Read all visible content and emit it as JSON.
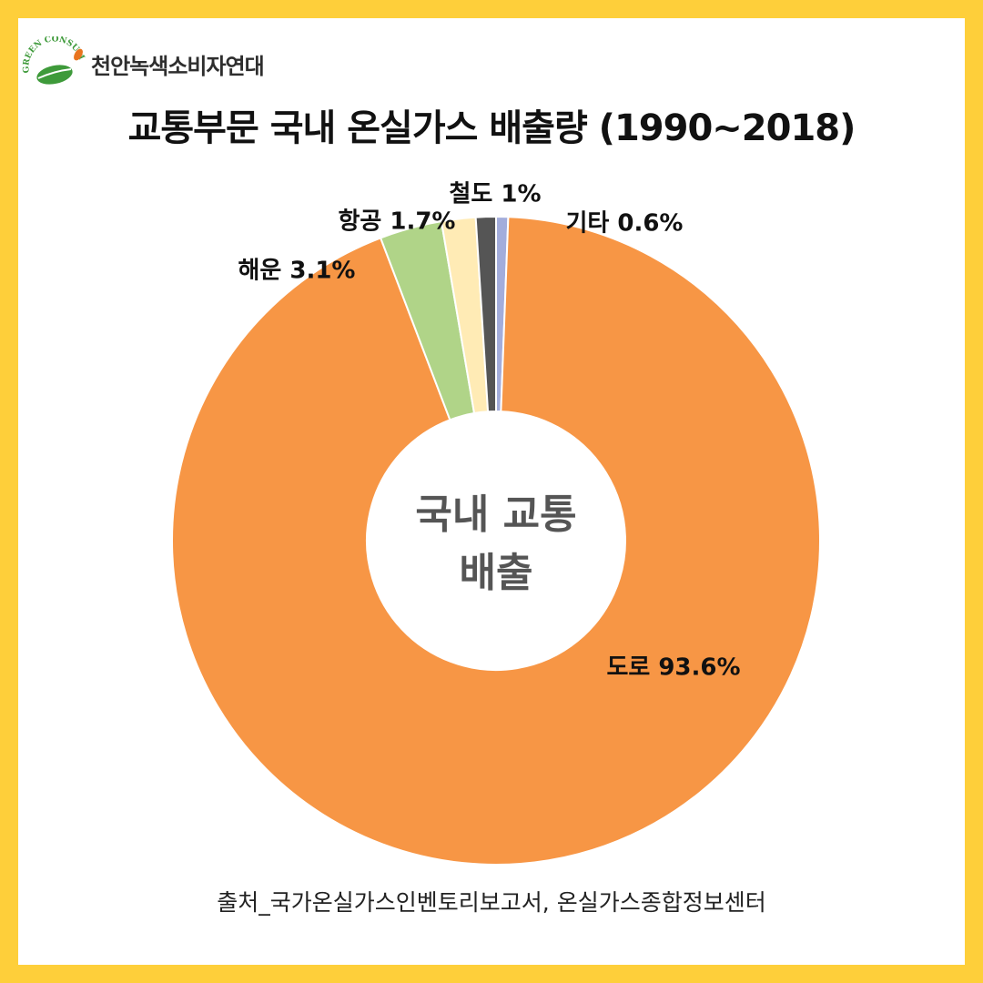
{
  "brand": {
    "logo_arc_text": "GREEN CONSUMER",
    "name": "천안녹색소비자연대",
    "logo_colors": {
      "leaf": "#3E9A3A",
      "accent": "#E8741F"
    }
  },
  "source_text": "출처_국가온실가스인벤토리보고서, 온실가스종합정보센터",
  "chart_data": {
    "type": "pie",
    "variant": "donut",
    "title": "교통부문 국내 온실가스 배출량 (1990~2018)",
    "center_label_lines": [
      "국내 교통",
      "배출"
    ],
    "unit": "%",
    "slices": [
      {
        "name": "기타",
        "value": 0.6,
        "label": "기타 0.6%",
        "color": "#A3ADDB"
      },
      {
        "name": "도로",
        "value": 93.6,
        "label": "도로 93.6%",
        "color": "#F79645"
      },
      {
        "name": "해운",
        "value": 3.1,
        "label": "해운 3.1%",
        "color": "#B0D488"
      },
      {
        "name": "항공",
        "value": 1.7,
        "label": "항공 1.7%",
        "color": "#FFEBB5"
      },
      {
        "name": "철도",
        "value": 1,
        "label": "철도 1%",
        "color": "#555555"
      }
    ],
    "legend": "none"
  }
}
